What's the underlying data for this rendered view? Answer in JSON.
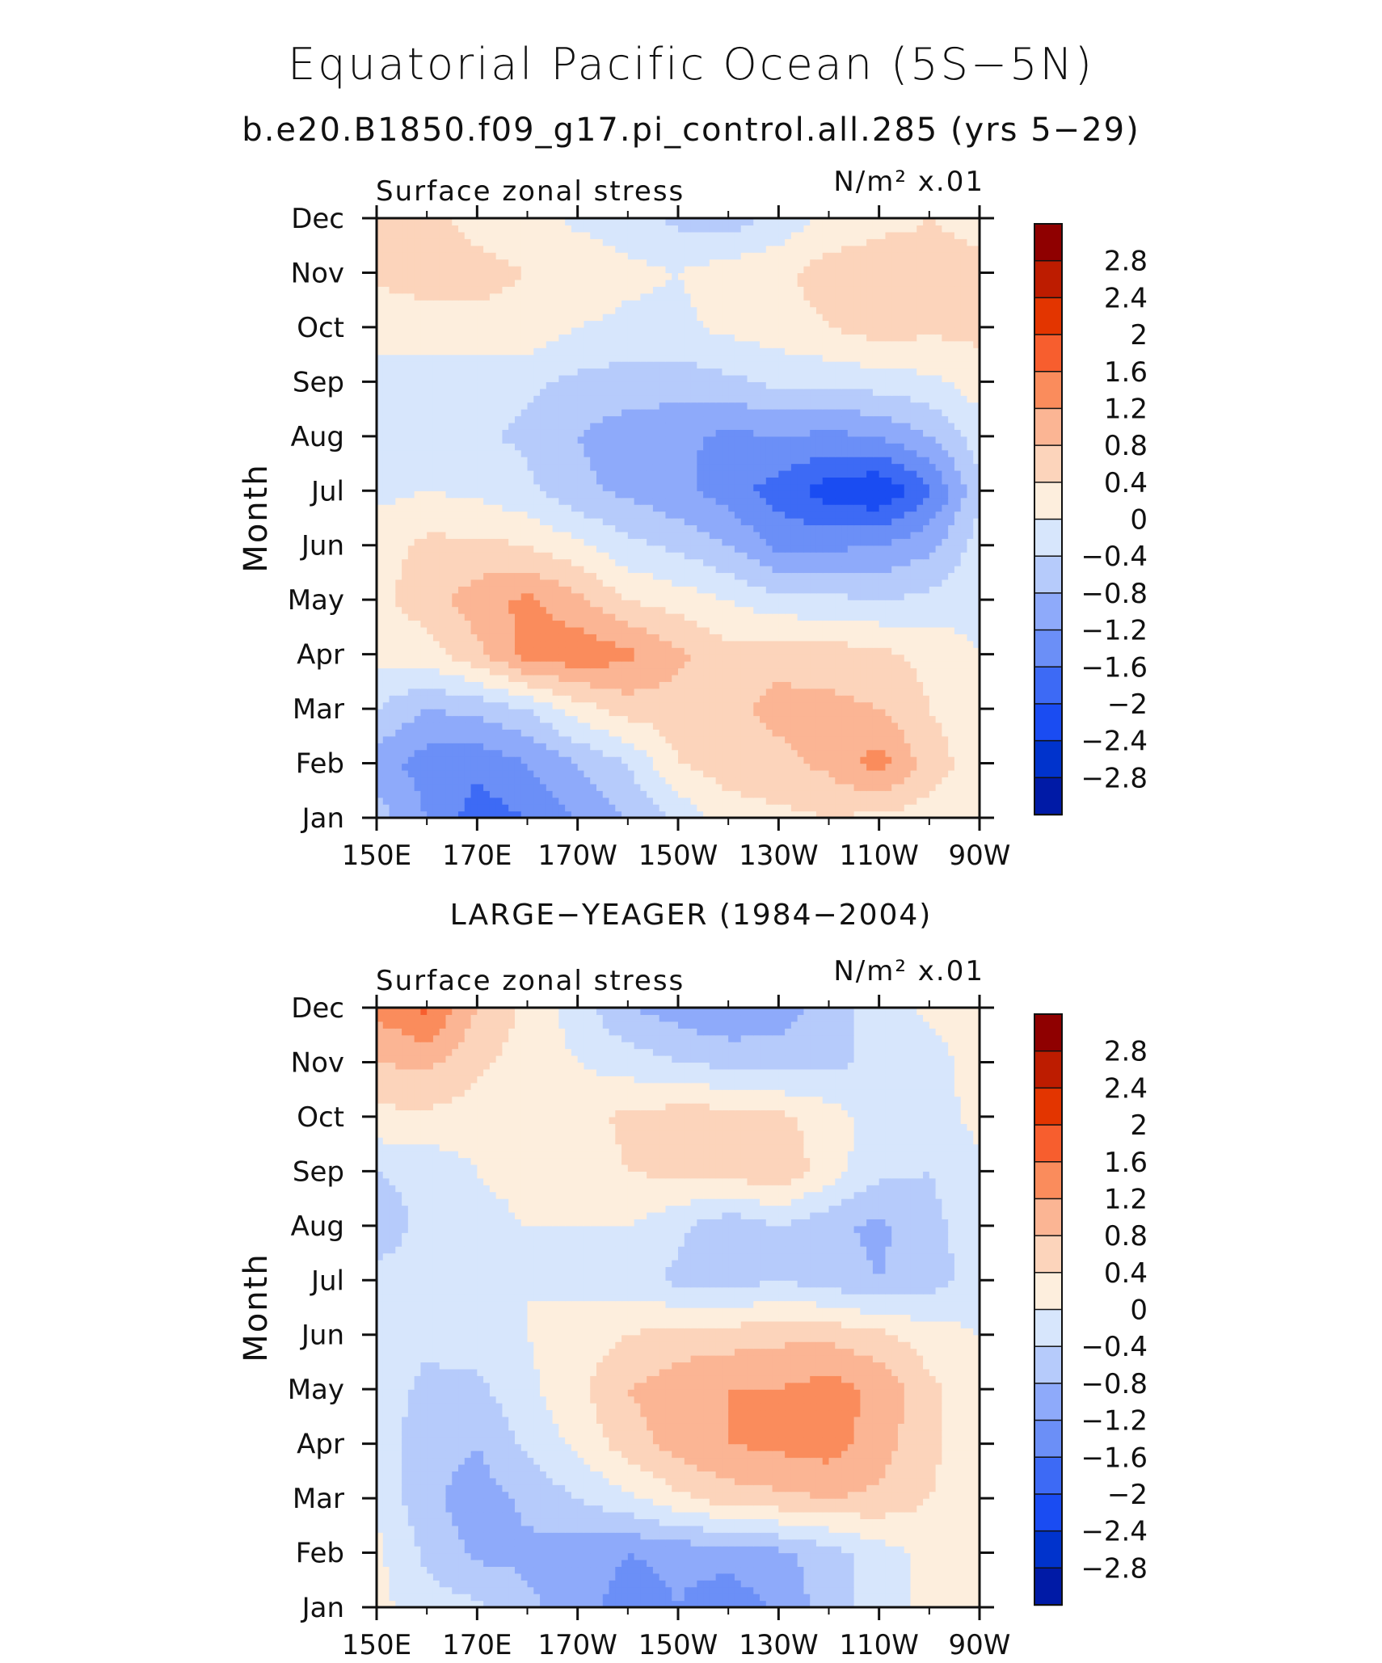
{
  "title": "Equatorial Pacific Ocean (5S−5N)",
  "subtitle": "b.e20.B1850.f09_g17.pi_control.all.285 (yrs 5−29)",
  "colors": {
    "levels": [
      "#000080",
      "#001aa6",
      "#0033cc",
      "#1a4cf2",
      "#3d6af5",
      "#6b8ff7",
      "#8eaafa",
      "#b6cbfb",
      "#d7e6fc",
      "#fdeedd",
      "#fcd4bb",
      "#fbb594",
      "#fa8c5c",
      "#f75e2e",
      "#e33500",
      "#bd1c00",
      "#8f0000"
    ]
  },
  "chart_data": [
    {
      "type": "heatmap",
      "panel_title": "",
      "left_label": "Surface zonal stress",
      "units_label": "N/m² x.01",
      "ylabel": "Month",
      "x_ticks": [
        "150E",
        "170E",
        "170W",
        "150W",
        "130W",
        "110W",
        "90W"
      ],
      "y_ticks": [
        "Jan",
        "Feb",
        "Mar",
        "Apr",
        "May",
        "Jun",
        "Jul",
        "Aug",
        "Sep",
        "Oct",
        "Nov",
        "Dec"
      ],
      "x_range": [
        150,
        270
      ],
      "colorbar_labels": [
        "2.8",
        "2.4",
        "2",
        "1.6",
        "1.2",
        "0.8",
        "0.4",
        "0",
        "−0.4",
        "−0.8",
        "−1.2",
        "−1.6",
        "−2",
        "−2.4",
        "−2.8"
      ],
      "values": [
        [
          -0.6,
          -1.2,
          -1.8,
          -1.6,
          -1.2,
          -0.8,
          -0.3,
          0.2,
          0.3,
          0.4,
          0.3,
          0.2,
          0.1
        ],
        [
          -1.0,
          -1.4,
          -1.5,
          -1.2,
          -0.8,
          -0.4,
          0.4,
          0.6,
          0.7,
          0.9,
          1.4,
          0.6,
          0.2
        ],
        [
          -0.4,
          -0.8,
          -0.7,
          -0.4,
          0.2,
          0.6,
          0.6,
          0.7,
          0.9,
          0.9,
          0.8,
          0.4,
          0.1
        ],
        [
          0.1,
          0.2,
          0.7,
          1.4,
          1.5,
          1.3,
          0.9,
          0.5,
          0.7,
          0.6,
          0.5,
          0.3,
          0.0
        ],
        [
          0.3,
          0.6,
          1.0,
          1.3,
          0.9,
          0.4,
          0.2,
          0.0,
          -0.3,
          -0.3,
          -0.4,
          -0.3,
          -0.1
        ],
        [
          0.2,
          0.5,
          0.5,
          0.4,
          0.1,
          -0.3,
          -0.5,
          -0.8,
          -1.3,
          -1.3,
          -1.2,
          -0.9,
          -0.2
        ],
        [
          -0.1,
          0.0,
          -0.1,
          -0.3,
          -0.7,
          -0.9,
          -1.1,
          -1.4,
          -1.8,
          -2.2,
          -2.4,
          -1.7,
          -0.5
        ],
        [
          -0.2,
          -0.3,
          -0.3,
          -0.5,
          -0.8,
          -1.0,
          -1.1,
          -1.3,
          -1.2,
          -1.3,
          -1.2,
          -0.8,
          -0.2
        ],
        [
          -0.1,
          -0.2,
          -0.3,
          -0.3,
          -0.5,
          -0.6,
          -0.6,
          -0.5,
          -0.3,
          -0.3,
          -0.2,
          -0.1,
          0.2
        ],
        [
          0.1,
          0.2,
          0.3,
          0.3,
          0.0,
          -0.1,
          -0.1,
          0.1,
          0.2,
          0.4,
          0.6,
          0.5,
          0.5
        ],
        [
          0.5,
          0.6,
          0.5,
          0.4,
          0.3,
          0.1,
          0.0,
          0.2,
          0.3,
          0.6,
          0.6,
          0.5,
          0.5
        ],
        [
          0.4,
          0.5,
          0.3,
          0.2,
          -0.1,
          -0.2,
          -0.5,
          -0.6,
          -0.3,
          0.1,
          0.3,
          0.4,
          0.3
        ]
      ]
    },
    {
      "type": "heatmap",
      "panel_title": "LARGE−YEAGER (1984−2004)",
      "left_label": "Surface zonal stress",
      "units_label": "N/m² x.01",
      "ylabel": "Month",
      "x_ticks": [
        "150E",
        "170E",
        "170W",
        "150W",
        "130W",
        "110W",
        "90W"
      ],
      "y_ticks": [
        "Jan",
        "Feb",
        "Mar",
        "Apr",
        "May",
        "Jun",
        "Jul",
        "Aug",
        "Sep",
        "Oct",
        "Nov",
        "Dec"
      ],
      "x_range": [
        150,
        270
      ],
      "colorbar_labels": [
        "2.8",
        "2.4",
        "2",
        "1.6",
        "1.2",
        "0.8",
        "0.4",
        "0",
        "−0.4",
        "−0.8",
        "−1.2",
        "−1.6",
        "−2",
        "−2.4",
        "−2.8"
      ],
      "values": [
        [
          0.1,
          -0.2,
          -0.3,
          -0.7,
          -1.0,
          -1.4,
          -1.2,
          -1.5,
          -1.1,
          -0.6,
          -0.2,
          0.1,
          0.2
        ],
        [
          0.1,
          -0.5,
          -0.9,
          -0.9,
          -1.0,
          -1.2,
          -1.1,
          -1.0,
          -0.9,
          -0.6,
          -0.2,
          0.1,
          0.2
        ],
        [
          -0.1,
          -0.7,
          -1.0,
          -0.7,
          -0.4,
          -0.1,
          0.3,
          0.6,
          0.7,
          0.8,
          0.7,
          0.4,
          0.2
        ],
        [
          -0.2,
          -0.6,
          -0.8,
          -0.3,
          0.1,
          0.6,
          1.0,
          1.2,
          1.3,
          1.4,
          1.0,
          0.5,
          0.1
        ],
        [
          -0.2,
          -0.5,
          -0.5,
          -0.1,
          0.3,
          0.8,
          1.0,
          1.2,
          1.2,
          1.4,
          1.1,
          0.5,
          0.1
        ],
        [
          -0.3,
          -0.3,
          -0.2,
          0.0,
          0.2,
          0.4,
          0.6,
          0.6,
          0.7,
          0.7,
          0.5,
          0.2,
          0.0
        ],
        [
          -0.3,
          -0.2,
          0.0,
          0.0,
          -0.1,
          -0.2,
          -0.5,
          -0.6,
          -0.4,
          -0.6,
          -0.8,
          -0.6,
          -0.2
        ],
        [
          -0.6,
          -0.3,
          -0.1,
          0.0,
          0.0,
          0.0,
          -0.3,
          -0.7,
          -0.4,
          -0.7,
          -0.9,
          -0.5,
          -0.2
        ],
        [
          -0.4,
          -0.3,
          0.0,
          0.1,
          0.2,
          0.4,
          0.5,
          0.6,
          0.7,
          0.2,
          -0.3,
          -0.4,
          -0.2
        ],
        [
          0.3,
          0.3,
          0.2,
          0.1,
          0.2,
          0.5,
          0.6,
          0.6,
          0.5,
          0.2,
          -0.2,
          -0.3,
          0.2
        ],
        [
          0.8,
          0.9,
          0.5,
          0.2,
          0.0,
          -0.2,
          -0.4,
          -0.5,
          -0.6,
          -0.5,
          -0.3,
          -0.2,
          0.2
        ],
        [
          1.3,
          1.7,
          0.8,
          0.3,
          -0.2,
          -0.8,
          -1.0,
          -1.2,
          -1.0,
          -0.6,
          -0.2,
          0.1,
          0.2
        ]
      ]
    }
  ]
}
